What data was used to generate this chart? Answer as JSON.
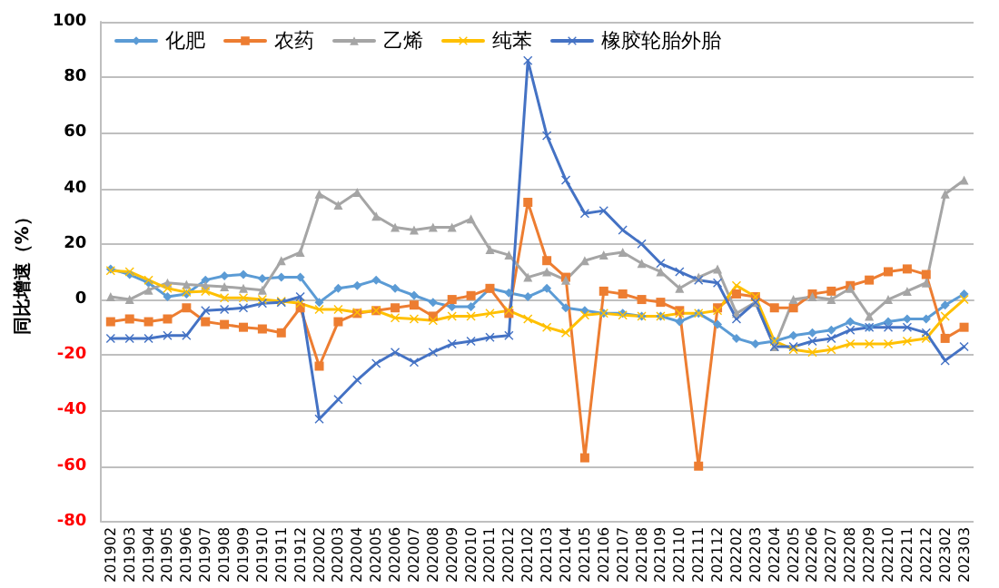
{
  "chart_data": {
    "type": "line",
    "ylabel": "同比增速（%）",
    "categories": [
      "201902",
      "201903",
      "201904",
      "201905",
      "201906",
      "201907",
      "201908",
      "201909",
      "201910",
      "201911",
      "201912",
      "202002",
      "202003",
      "202004",
      "202005",
      "202006",
      "202007",
      "202008",
      "202009",
      "202010",
      "202011",
      "202012",
      "202102",
      "202103",
      "202104",
      "202105",
      "202106",
      "202107",
      "202108",
      "202109",
      "202110",
      "202111",
      "202112",
      "202202",
      "202203",
      "202204",
      "202205",
      "202206",
      "202207",
      "202208",
      "202209",
      "202210",
      "202211",
      "202212",
      "202302",
      "202303"
    ],
    "series": [
      {
        "name": "化肥",
        "color": "#5b9bd5",
        "marker": "diamond",
        "values": [
          11,
          9,
          6,
          1,
          2,
          7,
          8.5,
          9,
          7.5,
          8,
          8,
          -1,
          4,
          5,
          7,
          4,
          1.5,
          -1,
          -2.6,
          -2.6,
          4,
          2.4,
          1,
          4,
          -3,
          -4,
          -5,
          -5,
          -6,
          -6,
          -8,
          -5,
          -9,
          -14,
          -16,
          -15,
          -13,
          -12,
          -11,
          -8,
          -10,
          -8,
          -7,
          -7,
          -2,
          2
        ]
      },
      {
        "name": "农药",
        "color": "#ed7d31",
        "marker": "square",
        "values": [
          -8,
          -7,
          -8,
          -7,
          -3,
          -8,
          -9,
          -10,
          -10.6,
          -12,
          -3,
          -24,
          -8,
          -5,
          -4,
          -3,
          -2,
          -6,
          0,
          1.4,
          4,
          -5,
          35,
          14,
          8,
          -57,
          3,
          2,
          0,
          -1,
          -4,
          -60,
          -3,
          2,
          1,
          -3,
          -3,
          2,
          3,
          5,
          7,
          10,
          11,
          9,
          -14,
          -10
        ]
      },
      {
        "name": "乙烯",
        "color": "#a5a5a5",
        "marker": "triangle",
        "values": [
          1,
          0,
          3.4,
          6,
          5.4,
          5,
          4.6,
          4,
          3.4,
          14,
          17,
          38,
          34,
          38.6,
          30,
          26,
          25,
          26,
          26,
          29,
          18,
          16,
          8,
          10,
          7,
          14,
          16,
          17,
          13,
          10,
          4,
          8,
          11,
          -5,
          -1,
          -17,
          0,
          1,
          0,
          4,
          -6,
          0,
          3,
          6,
          38,
          43
        ]
      },
      {
        "name": "纯苯",
        "color": "#ffc000",
        "marker": "cross",
        "values": [
          10.4,
          10,
          7,
          4,
          2.6,
          3,
          0.6,
          0.6,
          0,
          -0.6,
          -1.4,
          -3.6,
          -3.6,
          -4.6,
          -4,
          -6.6,
          -7,
          -7.6,
          -6,
          -6,
          -5,
          -4,
          -7,
          -10,
          -12,
          -5.6,
          -5,
          -5.6,
          -6,
          -6,
          -5,
          -5,
          -4,
          5,
          1,
          -15,
          -18,
          -19,
          -18,
          -16,
          -16,
          -16,
          -15,
          -14,
          -6,
          0
        ]
      },
      {
        "name": "橡胶轮胎外胎",
        "color": "#4472c4",
        "marker": "cross",
        "values": [
          -14,
          -14,
          -14,
          -13,
          -13,
          -4,
          -3.6,
          -3,
          -1.4,
          -1,
          1,
          -43,
          -36,
          -29,
          -23,
          -19,
          -22.6,
          -19,
          -16,
          -15,
          -13.6,
          -13,
          86,
          59,
          43,
          31,
          32,
          25,
          20,
          13,
          10,
          7,
          6,
          -7,
          -1,
          -17,
          -17,
          -15,
          -14,
          -11,
          -10,
          -10,
          -10,
          -12,
          -22,
          -17
        ]
      }
    ],
    "ylim": [
      -80,
      100
    ],
    "yticks": [
      -80,
      -60,
      -40,
      -20,
      0,
      20,
      40,
      60,
      80,
      100
    ],
    "grid": "y",
    "legend": "top left",
    "line_style": "solid"
  }
}
